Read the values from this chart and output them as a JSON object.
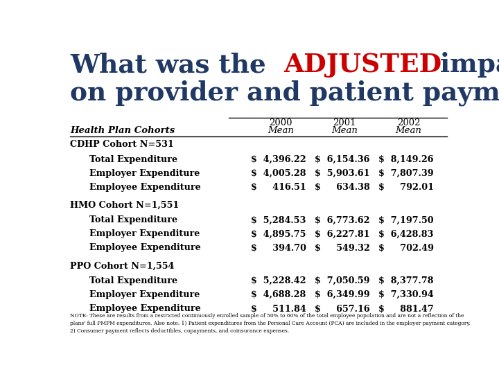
{
  "title_color1": "#1F3864",
  "title_color2": "#CC0000",
  "bg_color": "#FFFFFF",
  "col_header_year": [
    "2000",
    "2001",
    "2002"
  ],
  "col_header_mean": [
    "Mean",
    "Mean",
    "Mean"
  ],
  "header_label": "Health Plan Cohorts",
  "sections": [
    {
      "cohort": "CDHP Cohort N=531",
      "rows": [
        {
          "label": "Total Expenditure",
          "v2000": "$  4,396.22",
          "v2001": "$  6,154.36",
          "v2002": "$  8,149.26"
        },
        {
          "label": "Employer Expenditure",
          "v2000": "$  4,005.28",
          "v2001": "$  5,903.61",
          "v2002": "$  7,807.39"
        },
        {
          "label": "Employee Expenditure",
          "v2000": "$     416.51",
          "v2001": "$     634.38",
          "v2002": "$     792.01"
        }
      ]
    },
    {
      "cohort": "HMO Cohort N=1,551",
      "rows": [
        {
          "label": "Total Expenditure",
          "v2000": "$  5,284.53",
          "v2001": "$  6,773.62",
          "v2002": "$  7,197.50"
        },
        {
          "label": "Employer Expenditure",
          "v2000": "$  4,895.75",
          "v2001": "$  6,227.81",
          "v2002": "$  6,428.83"
        },
        {
          "label": "Employee Expenditure",
          "v2000": "$     394.70",
          "v2001": "$     549.32",
          "v2002": "$     702.49"
        }
      ]
    },
    {
      "cohort": "PPO Cohort N=1,554",
      "rows": [
        {
          "label": "Total Expenditure",
          "v2000": "$  5,228.42",
          "v2001": "$  7,050.59",
          "v2002": "$  8,377.78"
        },
        {
          "label": "Employer Expenditure",
          "v2000": "$  4,688.28",
          "v2001": "$  6,349.99",
          "v2002": "$  7,330.94"
        },
        {
          "label": "Employee Expenditure",
          "v2000": "$     511.84",
          "v2001": "$     657.16",
          "v2002": "$     881.47"
        }
      ]
    }
  ],
  "note_line1": "NOTE: These are results from a restricted continuously enrolled sample of 50% to 60% of the total employee population and are not a reflection of the",
  "note_line2": "plans' full PMPM expenditures. Also note: 1) Patient expenditures from the Personal Care Account (PCA) are included in the employer payment category.",
  "note_line3": "2) Consumer payment reflects deductibles, copayments, and coinsurance expenses.",
  "note_underline1": "not a reflection of the",
  "note_underline2": "plans' full PMPM expenditures."
}
